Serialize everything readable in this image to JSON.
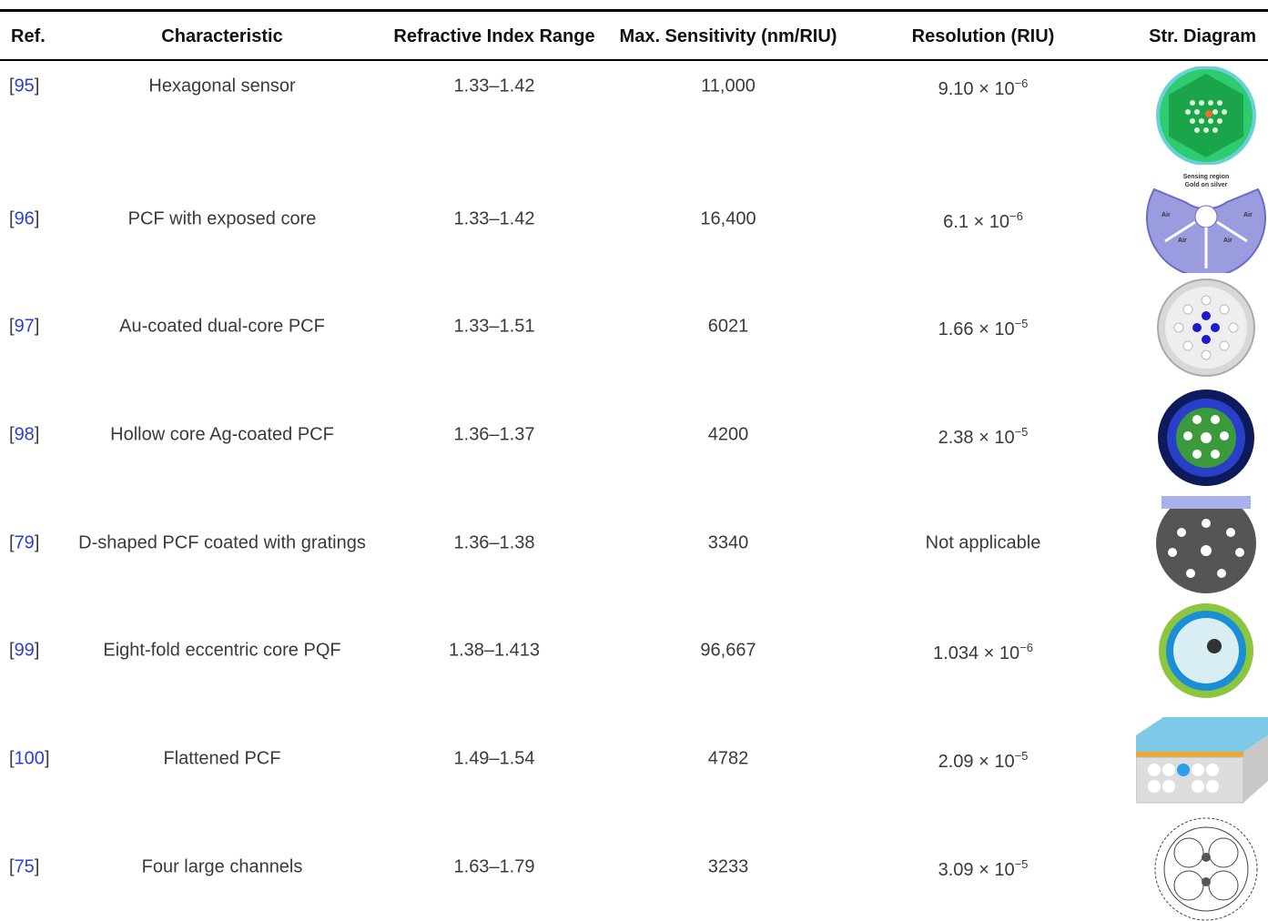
{
  "table": {
    "headers": [
      "Ref.",
      "Characteristic",
      "Refractive Index Range",
      "Max. Sensitivity (nm/RIU)",
      "Resolution (RIU)",
      "Str. Diagram"
    ],
    "ref_brackets": [
      "[",
      "]"
    ],
    "rows": [
      {
        "ref": "95",
        "characteristic": "Hexagonal sensor",
        "ri_range": "1.33–1.42",
        "sensitivity": "11,000",
        "resolution": {
          "base": "9.10 × 10",
          "exp": "−6"
        }
      },
      {
        "ref": "96",
        "characteristic": "PCF with exposed core",
        "ri_range": "1.33–1.42",
        "sensitivity": "16,400",
        "resolution": {
          "base": "6.1 × 10",
          "exp": "−6"
        },
        "diagram_labels": [
          "Sensing region",
          "Gold on silver",
          "Air",
          "Air",
          "Air",
          "Air"
        ]
      },
      {
        "ref": "97",
        "characteristic": "Au-coated dual-core PCF",
        "ri_range": "1.33–1.51",
        "sensitivity": "6021",
        "resolution": {
          "base": "1.66 × 10",
          "exp": "−5"
        }
      },
      {
        "ref": "98",
        "characteristic": "Hollow core Ag-coated PCF",
        "ri_range": "1.36–1.37",
        "sensitivity": "4200",
        "resolution": {
          "base": "2.38 × 10",
          "exp": "−5"
        }
      },
      {
        "ref": "79",
        "characteristic": "D-shaped PCF coated with gratings",
        "ri_range": "1.36–1.38",
        "sensitivity": "3340",
        "resolution": "Not applicable"
      },
      {
        "ref": "99",
        "characteristic": "Eight-fold eccentric core PQF",
        "ri_range": "1.38–1.413",
        "sensitivity": "96,667",
        "resolution": {
          "base": "1.034 × 10",
          "exp": "−6"
        }
      },
      {
        "ref": "100",
        "characteristic": "Flattened PCF",
        "ri_range": "1.49–1.54",
        "sensitivity": "4782",
        "resolution": {
          "base": "2.09 × 10",
          "exp": "−5"
        }
      },
      {
        "ref": "75",
        "characteristic": "Four large channels",
        "ri_range": "1.63–1.79",
        "sensitivity": "3233",
        "resolution": {
          "base": "3.09 × 10",
          "exp": "−5"
        }
      }
    ]
  }
}
